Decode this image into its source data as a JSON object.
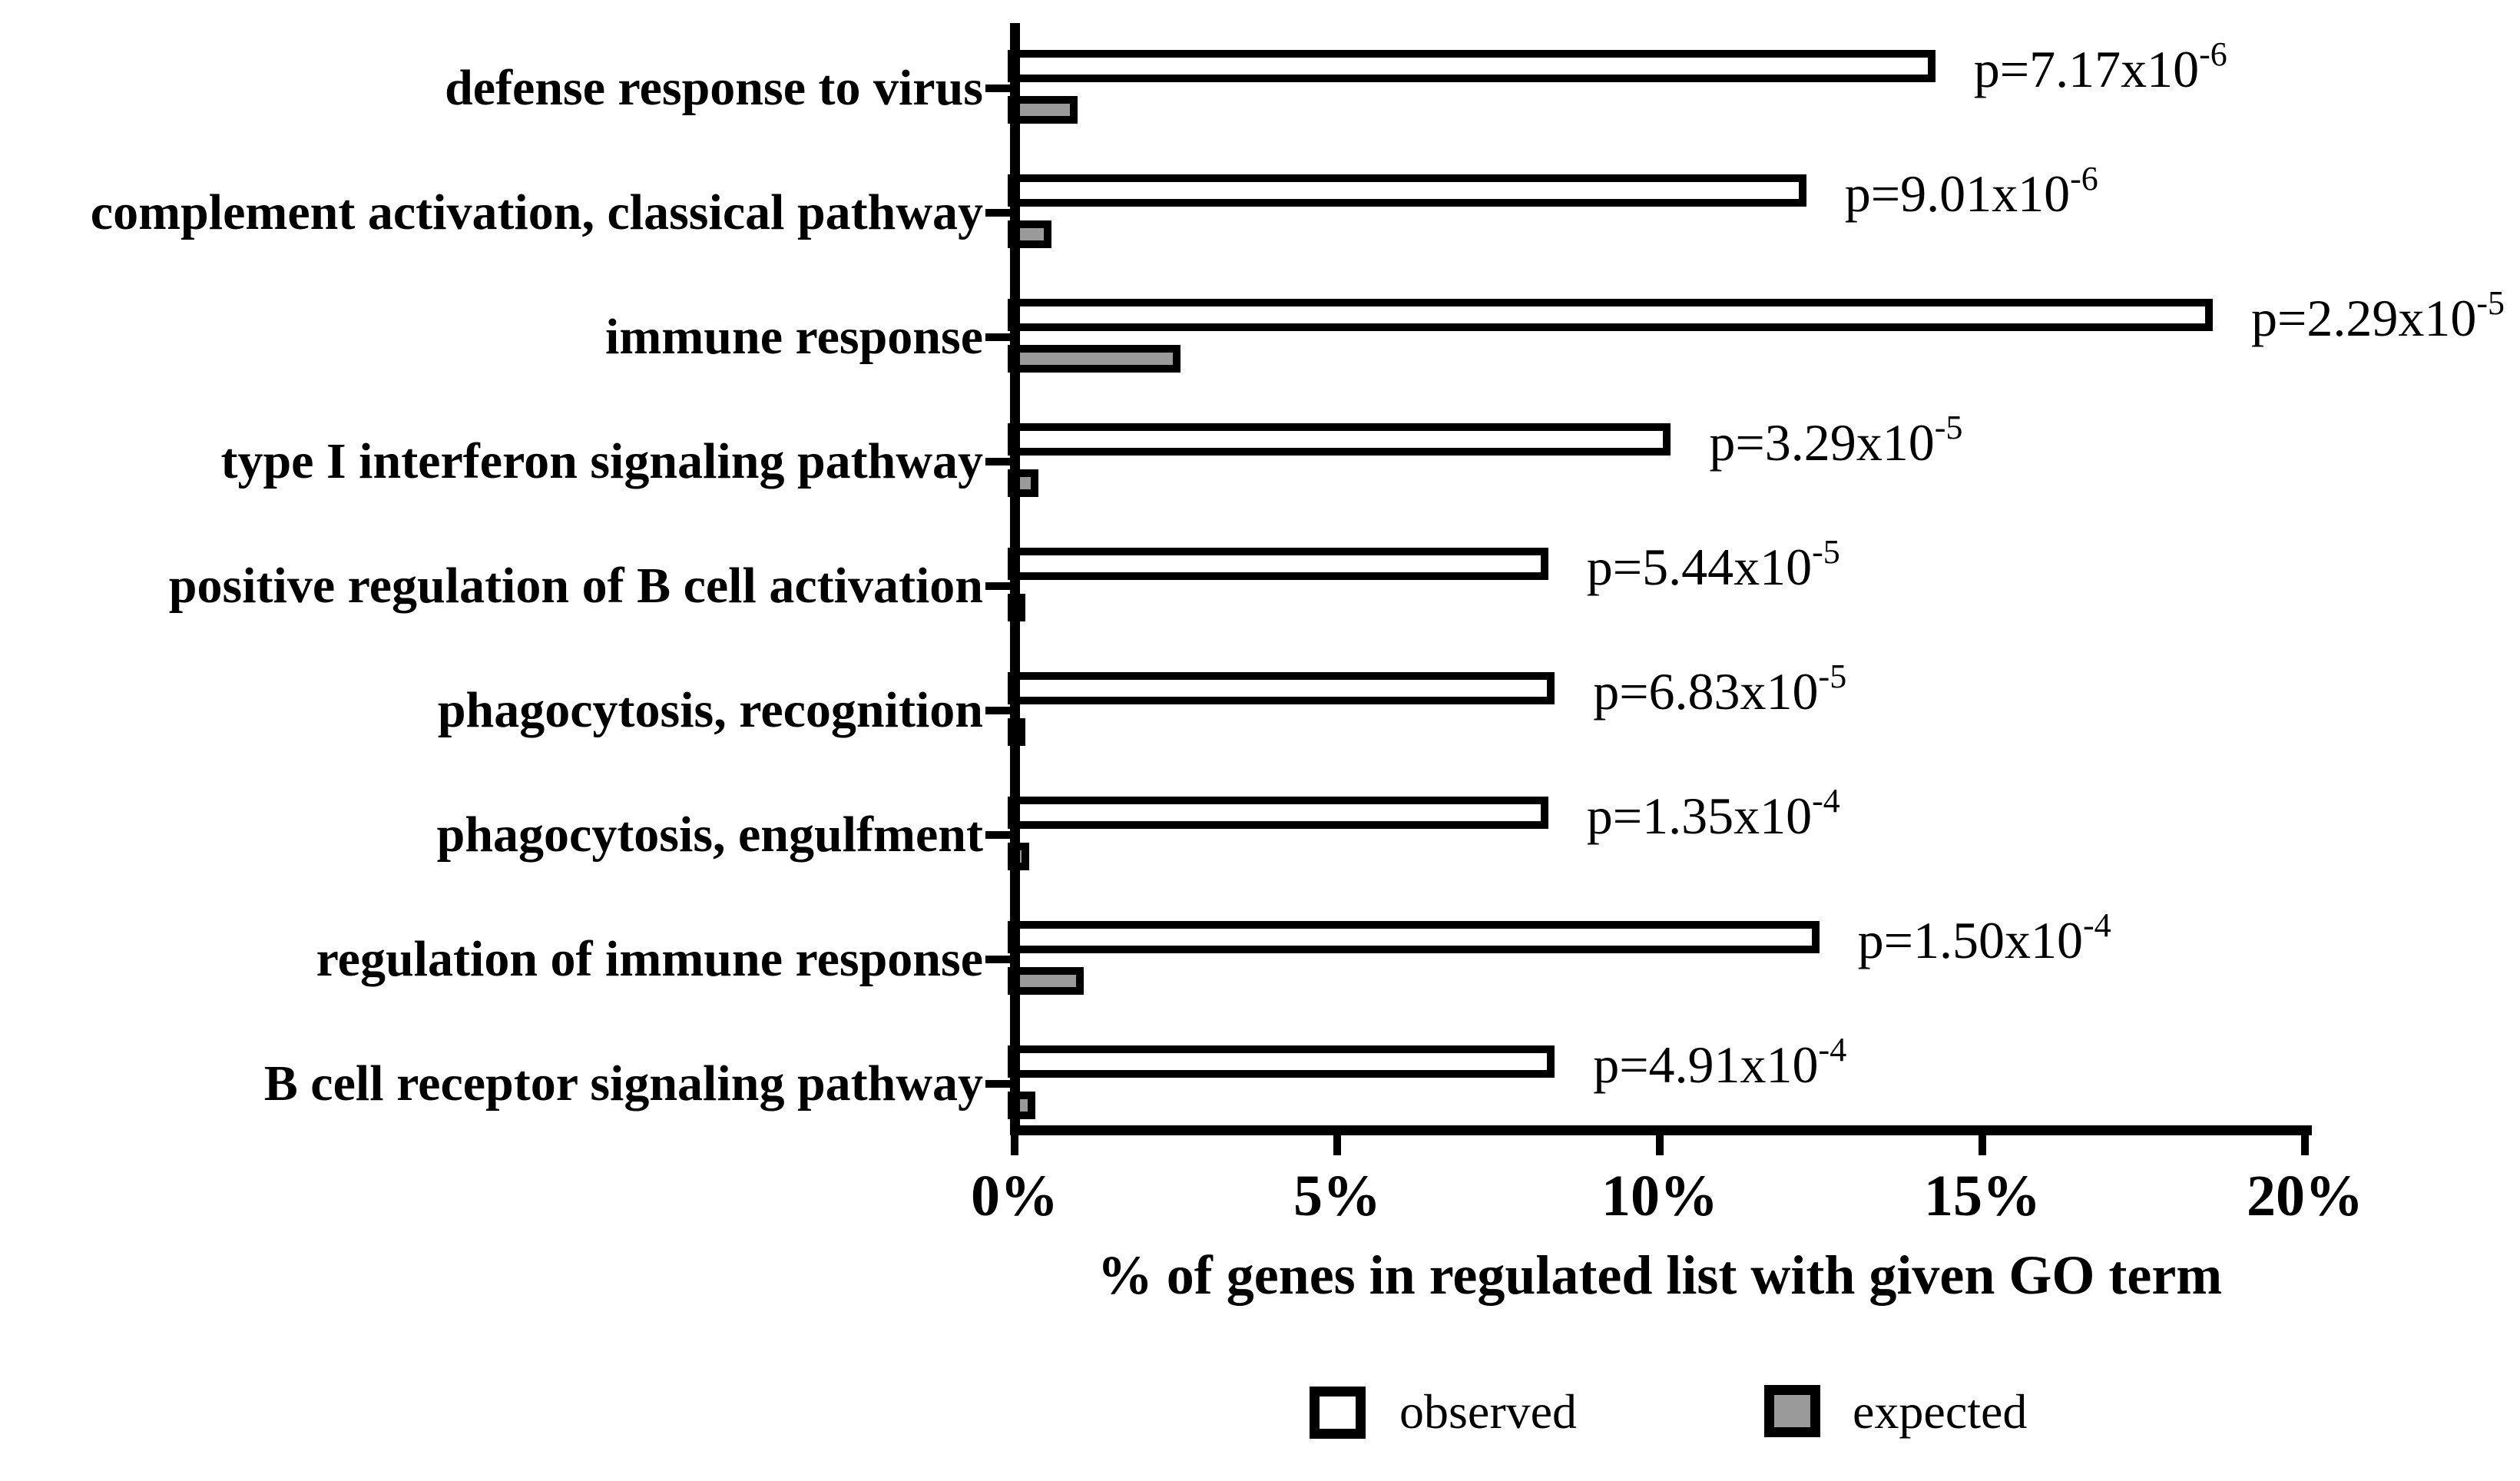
{
  "figure": {
    "background_color": "#ffffff",
    "axis_color": "#000000",
    "observed_fill": "#ffffff",
    "expected_fill": "#9a9a9a",
    "axis_title": "% of genes in regulated list with given GO term",
    "legend": [
      {
        "label": "observed",
        "fill": "#ffffff"
      },
      {
        "label": "expected",
        "fill": "#9a9a9a"
      }
    ]
  },
  "chart_data": {
    "type": "bar",
    "orientation": "horizontal",
    "title": "",
    "xlabel": "% of genes in regulated list with given GO term",
    "ylabel": "",
    "xlim": [
      0,
      20
    ],
    "x_tick_labels": [
      "0%",
      "5%",
      "10%",
      "15%",
      "20%"
    ],
    "x_tick_values": [
      0,
      5,
      10,
      15,
      20
    ],
    "grid": false,
    "legend_position": "bottom",
    "categories": [
      "defense response to virus",
      "complement activation, classical pathway",
      "immune response",
      "type I interferon signaling pathway",
      "positive regulation of B cell activation",
      "phagocytosis, recognition",
      "phagocytosis, engulfment",
      "regulation of immune response",
      "B cell receptor signaling pathway"
    ],
    "series": [
      {
        "name": "observed",
        "fill": "#ffffff",
        "values": [
          14.2,
          12.2,
          18.5,
          10.1,
          8.2,
          8.3,
          8.2,
          12.4,
          8.3
        ]
      },
      {
        "name": "expected",
        "fill": "#9a9a9a",
        "values": [
          0.9,
          0.5,
          2.5,
          0.3,
          0.1,
          0.1,
          0.15,
          1.0,
          0.25
        ]
      }
    ],
    "p_value_labels": [
      {
        "base": "p=7.17x10",
        "exponent": "-6"
      },
      {
        "base": "p=9.01x10",
        "exponent": "-6"
      },
      {
        "base": "p=2.29x10",
        "exponent": "-5"
      },
      {
        "base": "p=3.29x10",
        "exponent": "-5"
      },
      {
        "base": "p=5.44x10",
        "exponent": "-5"
      },
      {
        "base": "p=6.83x10",
        "exponent": "-5"
      },
      {
        "base": "p=1.35x10",
        "exponent": "-4"
      },
      {
        "base": "p=1.50x10",
        "exponent": "-4"
      },
      {
        "base": "p=4.91x10",
        "exponent": "-4"
      }
    ]
  }
}
